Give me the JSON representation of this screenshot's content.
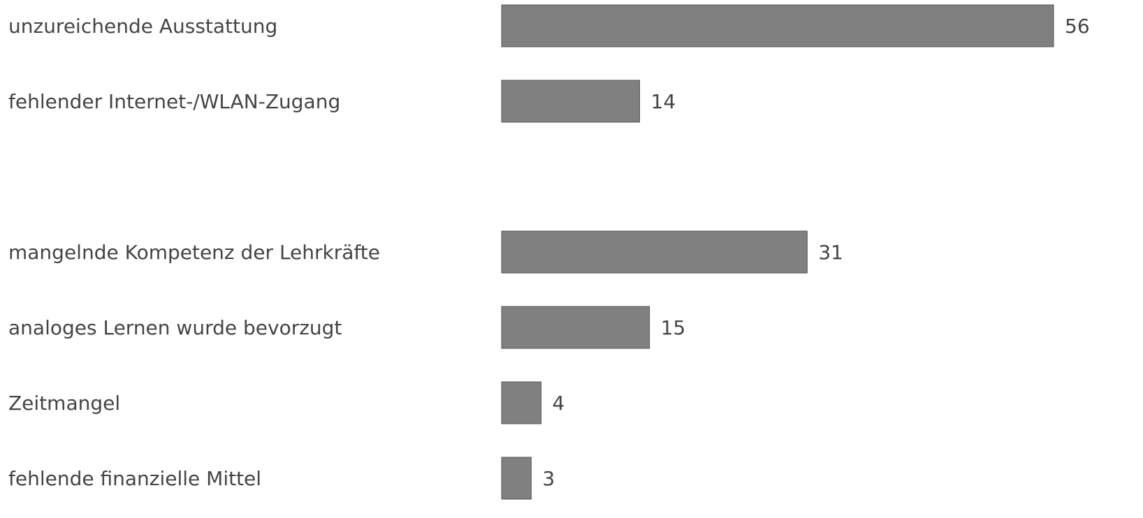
{
  "chart_data": {
    "type": "bar",
    "orientation": "horizontal",
    "categories": [
      "unzureichende Ausstattung",
      "fehlender Internet-/WLAN-Zugang",
      null,
      "mangelnde Kompetenz der Lehrkräfte",
      "analoges Lernen wurde bevorzugt",
      "Zeitmangel",
      "fehlende finanzielle Mittel"
    ],
    "values": [
      56,
      14,
      null,
      31,
      15,
      4,
      3
    ],
    "color": "#808080"
  }
}
